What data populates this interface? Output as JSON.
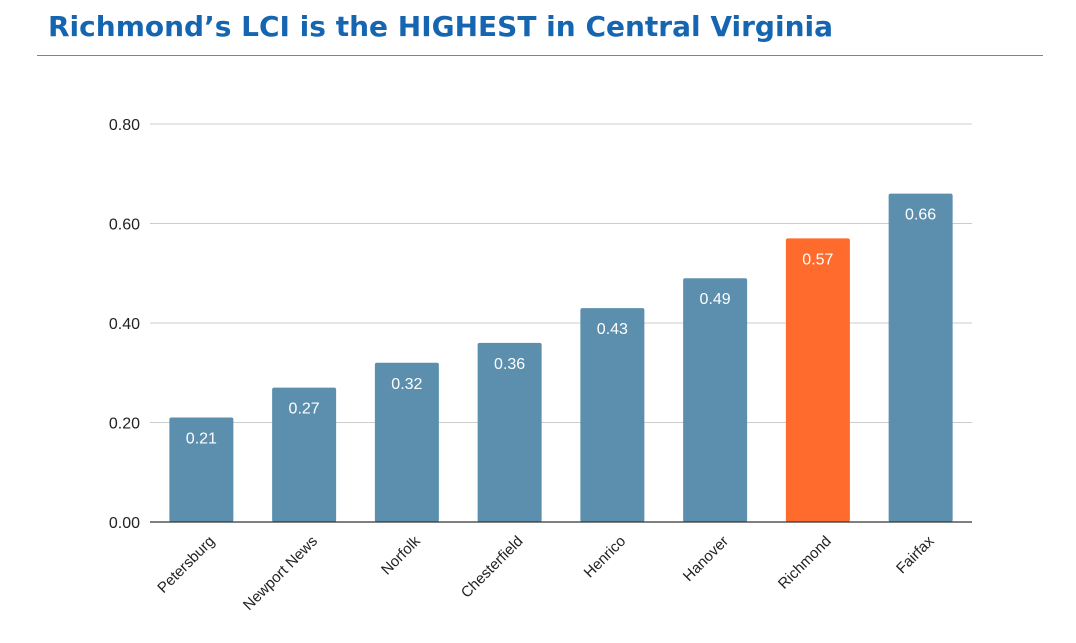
{
  "title": "Richmond’s LCI is the HIGHEST in Central Virginia",
  "chart_data": {
    "type": "bar",
    "title": "Richmond’s LCI is the HIGHEST in Central Virginia",
    "xlabel": "",
    "ylabel": "",
    "ylim": [
      0,
      0.8
    ],
    "yticks": [
      "0.00",
      "0.20",
      "0.40",
      "0.60",
      "0.80"
    ],
    "ytick_values": [
      0,
      0.2,
      0.4,
      0.6,
      0.8
    ],
    "grid": true,
    "categories": [
      "Petersburg",
      "Newport News",
      "Norfolk",
      "Chesterfield",
      "Henrico",
      "Hanover",
      "Richmond",
      "Fairfax"
    ],
    "values": [
      0.21,
      0.27,
      0.32,
      0.36,
      0.43,
      0.49,
      0.57,
      0.66
    ],
    "labels": [
      "0.21",
      "0.27",
      "0.32",
      "0.36",
      "0.43",
      "0.49",
      "0.57",
      "0.66"
    ],
    "highlight": "Richmond",
    "colors": {
      "bar": "#5b8fad",
      "highlight": "#ff6b2c",
      "grid": "#cccccc",
      "axis": "#333333",
      "label_text": "#ffffff",
      "tick_text": "#222222"
    }
  }
}
